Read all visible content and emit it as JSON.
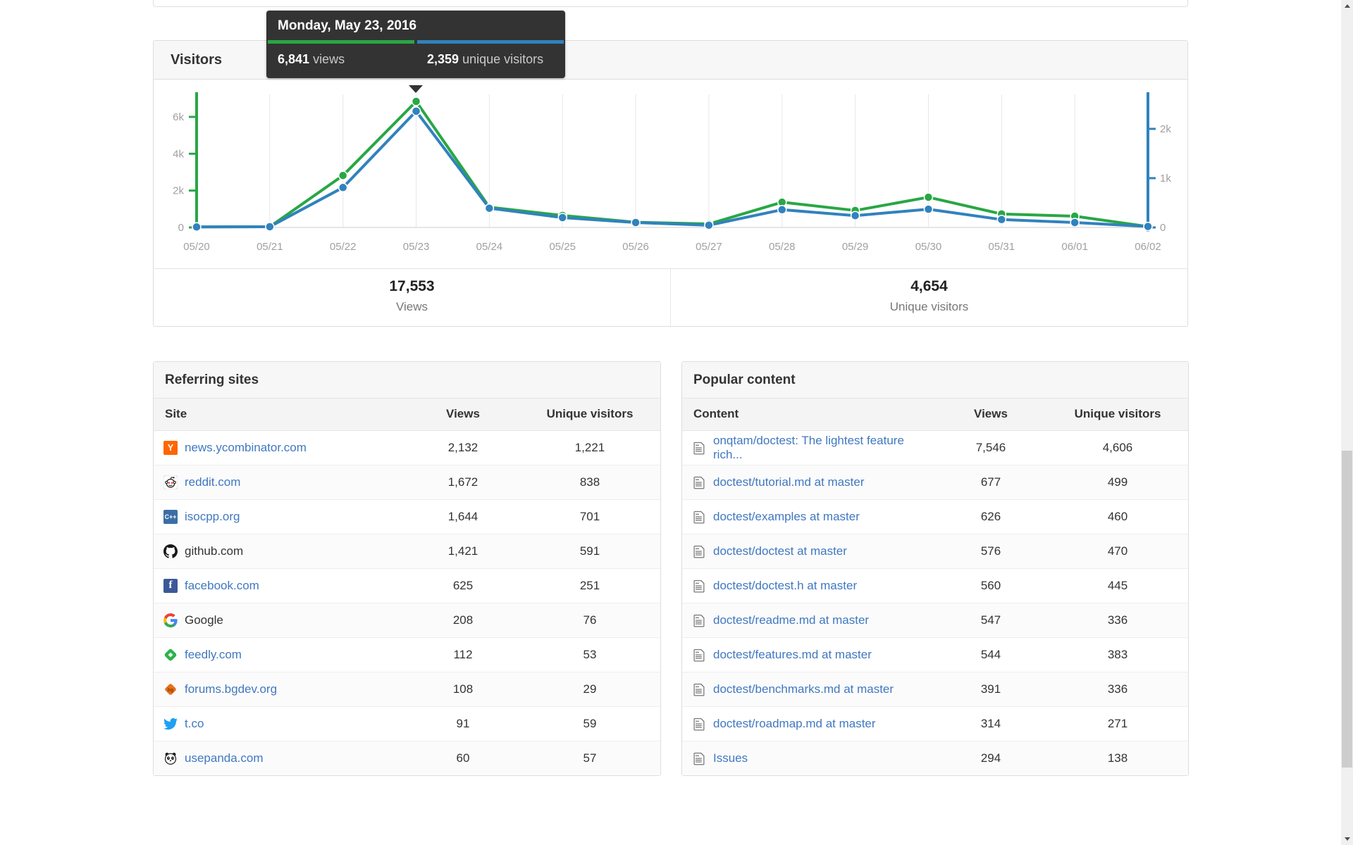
{
  "tooltip": {
    "date": "Monday, May 23, 2016",
    "views_value": "6,841",
    "views_label": "views",
    "unique_value": "2,359",
    "unique_label": "unique visitors"
  },
  "visitors_card": {
    "title": "Visitors",
    "summary": {
      "views_value": "17,553",
      "views_label": "Views",
      "unique_value": "4,654",
      "unique_label": "Unique visitors"
    }
  },
  "chart_data": {
    "type": "line",
    "title": "Visitors",
    "x": [
      "05/20",
      "05/21",
      "05/22",
      "05/23",
      "05/24",
      "05/25",
      "05/26",
      "05/27",
      "05/28",
      "05/29",
      "05/30",
      "05/31",
      "06/01",
      "06/02"
    ],
    "series": [
      {
        "name": "Views",
        "color": "#28a745",
        "axis": "left",
        "values": [
          30,
          40,
          2820,
          6841,
          1100,
          650,
          280,
          190,
          1370,
          920,
          1640,
          730,
          610,
          50
        ]
      },
      {
        "name": "Unique visitors",
        "color": "#3182bd",
        "axis": "right",
        "values": [
          10,
          15,
          810,
          2359,
          390,
          200,
          100,
          45,
          360,
          240,
          370,
          160,
          100,
          20
        ]
      }
    ],
    "left_axis": {
      "ticks": [
        0,
        2000,
        4000,
        6000
      ],
      "tick_labels": [
        "0",
        "2k",
        "4k",
        "6k"
      ],
      "max": 7600
    },
    "right_axis": {
      "ticks": [
        0,
        1000,
        2000
      ],
      "tick_labels": [
        "0",
        "1k",
        "2k"
      ],
      "max": 2700
    },
    "highlighted_x": "05/23",
    "grid": "vertical",
    "legend": "none"
  },
  "referring": {
    "title": "Referring sites",
    "columns": [
      "Site",
      "Views",
      "Unique visitors"
    ],
    "rows": [
      {
        "site": "news.ycombinator.com",
        "views": "2,132",
        "unique": "1,221",
        "icon": "ycombinator-icon",
        "link": true
      },
      {
        "site": "reddit.com",
        "views": "1,672",
        "unique": "838",
        "icon": "reddit-icon",
        "link": true
      },
      {
        "site": "isocpp.org",
        "views": "1,644",
        "unique": "701",
        "icon": "isocpp-icon",
        "link": true
      },
      {
        "site": "github.com",
        "views": "1,421",
        "unique": "591",
        "icon": "github-icon",
        "link": false
      },
      {
        "site": "facebook.com",
        "views": "625",
        "unique": "251",
        "icon": "facebook-icon",
        "link": true
      },
      {
        "site": "Google",
        "views": "208",
        "unique": "76",
        "icon": "google-icon",
        "link": false
      },
      {
        "site": "feedly.com",
        "views": "112",
        "unique": "53",
        "icon": "feedly-icon",
        "link": true
      },
      {
        "site": "forums.bgdev.org",
        "views": "108",
        "unique": "29",
        "icon": "bgdev-icon",
        "link": true
      },
      {
        "site": "t.co",
        "views": "91",
        "unique": "59",
        "icon": "twitter-icon",
        "link": true
      },
      {
        "site": "usepanda.com",
        "views": "60",
        "unique": "57",
        "icon": "panda-icon",
        "link": true
      }
    ]
  },
  "popular": {
    "title": "Popular content",
    "columns": [
      "Content",
      "Views",
      "Unique visitors"
    ],
    "rows": [
      {
        "content": "onqtam/doctest: The lightest feature rich...",
        "views": "7,546",
        "unique": "4,606"
      },
      {
        "content": "doctest/tutorial.md at master",
        "views": "677",
        "unique": "499"
      },
      {
        "content": "doctest/examples at master",
        "views": "626",
        "unique": "460"
      },
      {
        "content": "doctest/doctest at master",
        "views": "576",
        "unique": "470"
      },
      {
        "content": "doctest/doctest.h at master",
        "views": "560",
        "unique": "445"
      },
      {
        "content": "doctest/readme.md at master",
        "views": "547",
        "unique": "336"
      },
      {
        "content": "doctest/features.md at master",
        "views": "544",
        "unique": "383"
      },
      {
        "content": "doctest/benchmarks.md at master",
        "views": "391",
        "unique": "336"
      },
      {
        "content": "doctest/roadmap.md at master",
        "views": "314",
        "unique": "271"
      },
      {
        "content": "Issues",
        "views": "294",
        "unique": "138"
      }
    ]
  },
  "colors": {
    "views_green": "#28a745",
    "unique_blue": "#3182bd",
    "link_blue": "#4078c0",
    "grid": "#e8e8e8",
    "axis_label": "#a0a0a0"
  }
}
